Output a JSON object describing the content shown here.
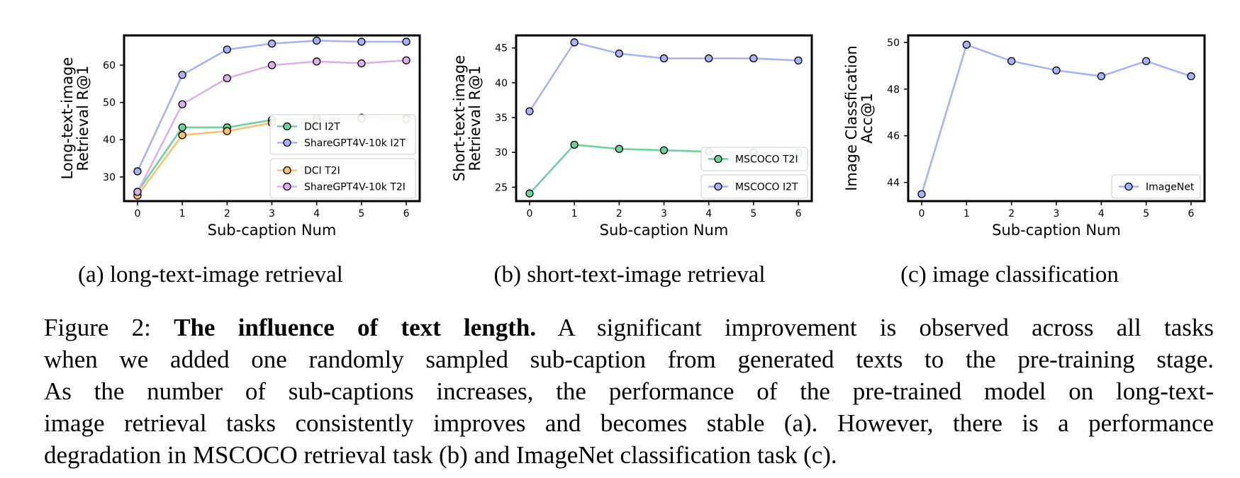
{
  "chart_data": [
    {
      "type": "line",
      "xlabel": "Sub-caption Num",
      "ylabel": [
        "Long-text-image",
        "Retrieval R@1"
      ],
      "x": [
        0,
        1,
        2,
        3,
        4,
        5,
        6
      ],
      "xlim": [
        -0.3,
        6.3
      ],
      "ylim": [
        23.5,
        68
      ],
      "yticks": [
        30,
        40,
        50,
        60
      ],
      "legend_groups": [
        {
          "placement": "lower-right-upper",
          "entries": [
            0,
            1
          ]
        },
        {
          "placement": "lower-right",
          "entries": [
            2,
            3
          ]
        }
      ],
      "series": [
        {
          "name": "DCI I2T",
          "color": "#6cd39a",
          "values": [
            26.0,
            43.3,
            43.3,
            45.3,
            45.7,
            45.9,
            45.7
          ]
        },
        {
          "name": "ShareGPT4V-10k I2T",
          "color": "#a6b4f7",
          "values": [
            31.5,
            57.4,
            64.2,
            65.8,
            66.6,
            66.3,
            66.3
          ]
        },
        {
          "name": "DCI T2I",
          "color": "#f8c274",
          "values": [
            25.0,
            41.2,
            42.3,
            44.5,
            44.9,
            45.7,
            45.5
          ]
        },
        {
          "name": "ShareGPT4V-10k T2I",
          "color": "#ddb0ec",
          "values": [
            26.0,
            49.5,
            56.5,
            60.0,
            61.0,
            60.5,
            61.3
          ]
        }
      ]
    },
    {
      "type": "line",
      "xlabel": "Sub-caption Num",
      "ylabel": [
        "Short-text-image",
        "Retrieval R@1"
      ],
      "x": [
        0,
        1,
        2,
        3,
        4,
        5,
        6
      ],
      "xlim": [
        -0.3,
        6.3
      ],
      "ylim": [
        23,
        46.8
      ],
      "yticks": [
        25,
        30,
        35,
        40,
        45
      ],
      "legend_groups": [
        {
          "placement": "lower-right-upper",
          "entries": [
            0
          ]
        },
        {
          "placement": "lower-right",
          "entries": [
            1
          ]
        }
      ],
      "series": [
        {
          "name": "MSCOCO T2I",
          "color": "#6cd39a",
          "values": [
            24.1,
            31.1,
            30.5,
            30.3,
            30.1,
            30.0,
            29.9
          ]
        },
        {
          "name": "MSCOCO I2T",
          "color": "#a6b4f7",
          "values": [
            35.9,
            45.8,
            44.2,
            43.5,
            43.5,
            43.5,
            43.2
          ]
        }
      ]
    },
    {
      "type": "line",
      "xlabel": "Sub-caption Num",
      "ylabel": [
        "Image Classfication",
        "Acc@1"
      ],
      "x": [
        0,
        1,
        2,
        3,
        4,
        5,
        6
      ],
      "xlim": [
        -0.3,
        6.3
      ],
      "ylim": [
        43.2,
        50.3
      ],
      "yticks": [
        44,
        46,
        48,
        50
      ],
      "legend_groups": [
        {
          "placement": "lower-right",
          "entries": [
            0
          ]
        }
      ],
      "series": [
        {
          "name": "ImageNet",
          "color": "#a6b4f7",
          "values": [
            43.5,
            49.9,
            49.2,
            48.8,
            48.55,
            49.2,
            48.55
          ]
        }
      ]
    }
  ],
  "subcaptions": {
    "a": "(a) long-text-image retrieval",
    "b": "(b) short-text-image retrieval",
    "c": "(c) image classification"
  },
  "caption": {
    "label": "Figure 2:",
    "title": "The influence of text length.",
    "line1": "A significant improvement is observed across all tasks",
    "line2": "when we added one randomly sampled sub-caption from generated texts to the pre-training stage.",
    "line3": "As the number of sub-captions increases, the performance of the pre-trained model on long-text-",
    "line4": "image retrieval tasks consistently improves and becomes stable (a). However, there is a performance",
    "line5": "degradation in MSCOCO retrieval task (b) and ImageNet classification task (c)."
  }
}
